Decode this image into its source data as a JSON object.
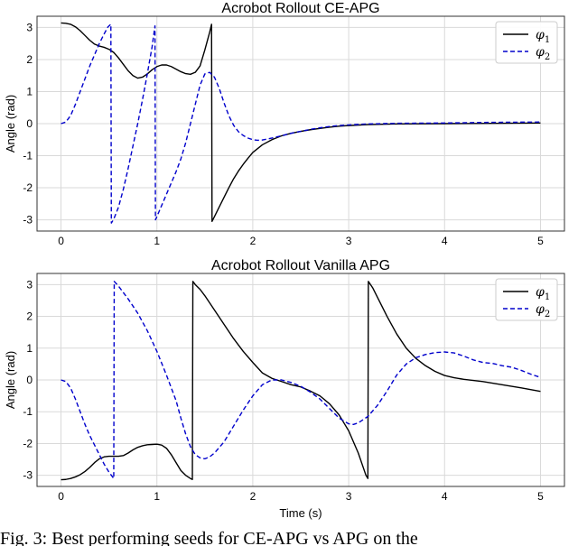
{
  "caption": "Fig. 3: Best performing seeds for CE-APG vs APG on the",
  "colors": {
    "phi1": "#000000",
    "phi2": "#0000cc"
  },
  "chart_data": [
    {
      "type": "line",
      "title": "Acrobot Rollout CE-APG",
      "xlabel": "",
      "ylabel": "Angle (rad)",
      "xlim": [
        -0.25,
        5.25
      ],
      "ylim": [
        -3.35,
        3.35
      ],
      "xticks": [
        0,
        1,
        2,
        3,
        4,
        5
      ],
      "yticks": [
        -3,
        -2,
        -1,
        0,
        1,
        2,
        3
      ],
      "grid": true,
      "legend": "top-right",
      "series": [
        {
          "name": "φ1",
          "label_main": "φ",
          "label_sub": "1",
          "style": "solid",
          "color": "#000000",
          "points": [
            [
              0,
              3.14
            ],
            [
              0.05,
              3.13
            ],
            [
              0.1,
              3.1
            ],
            [
              0.15,
              3.02
            ],
            [
              0.2,
              2.9
            ],
            [
              0.25,
              2.75
            ],
            [
              0.3,
              2.6
            ],
            [
              0.35,
              2.48
            ],
            [
              0.4,
              2.42
            ],
            [
              0.45,
              2.38
            ],
            [
              0.5,
              2.32
            ],
            [
              0.55,
              2.22
            ],
            [
              0.6,
              2.05
            ],
            [
              0.65,
              1.85
            ],
            [
              0.7,
              1.65
            ],
            [
              0.75,
              1.5
            ],
            [
              0.8,
              1.42
            ],
            [
              0.85,
              1.45
            ],
            [
              0.9,
              1.55
            ],
            [
              0.95,
              1.68
            ],
            [
              1.0,
              1.78
            ],
            [
              1.05,
              1.83
            ],
            [
              1.1,
              1.83
            ],
            [
              1.15,
              1.78
            ],
            [
              1.2,
              1.7
            ],
            [
              1.25,
              1.62
            ],
            [
              1.3,
              1.56
            ],
            [
              1.35,
              1.54
            ],
            [
              1.4,
              1.6
            ],
            [
              1.45,
              1.8
            ],
            [
              1.5,
              2.3
            ],
            [
              1.55,
              2.85
            ],
            [
              1.57,
              3.1
            ],
            [
              1.575,
              -3.05
            ],
            [
              1.6,
              -2.9
            ],
            [
              1.65,
              -2.6
            ],
            [
              1.7,
              -2.3
            ],
            [
              1.75,
              -2.0
            ],
            [
              1.8,
              -1.72
            ],
            [
              1.85,
              -1.48
            ],
            [
              1.9,
              -1.27
            ],
            [
              1.95,
              -1.08
            ],
            [
              2.0,
              -0.9
            ],
            [
              2.1,
              -0.66
            ],
            [
              2.2,
              -0.5
            ],
            [
              2.3,
              -0.38
            ],
            [
              2.4,
              -0.3
            ],
            [
              2.5,
              -0.24
            ],
            [
              2.6,
              -0.19
            ],
            [
              2.7,
              -0.15
            ],
            [
              2.8,
              -0.11
            ],
            [
              2.9,
              -0.08
            ],
            [
              3.0,
              -0.06
            ],
            [
              3.2,
              -0.03
            ],
            [
              3.5,
              -0.01
            ],
            [
              4.0,
              0.0
            ],
            [
              4.5,
              0.01
            ],
            [
              5.0,
              0.02
            ]
          ]
        },
        {
          "name": "φ2",
          "label_main": "φ",
          "label_sub": "2",
          "style": "dashed",
          "color": "#0000cc",
          "points": [
            [
              0,
              0.0
            ],
            [
              0.05,
              0.05
            ],
            [
              0.1,
              0.25
            ],
            [
              0.15,
              0.6
            ],
            [
              0.2,
              1.0
            ],
            [
              0.25,
              1.4
            ],
            [
              0.3,
              1.8
            ],
            [
              0.35,
              2.15
            ],
            [
              0.4,
              2.5
            ],
            [
              0.45,
              2.8
            ],
            [
              0.49,
              3.02
            ],
            [
              0.52,
              3.1
            ],
            [
              0.525,
              -3.1
            ],
            [
              0.55,
              -2.98
            ],
            [
              0.6,
              -2.6
            ],
            [
              0.65,
              -2.05
            ],
            [
              0.7,
              -1.4
            ],
            [
              0.75,
              -0.7
            ],
            [
              0.8,
              0.0
            ],
            [
              0.85,
              0.75
            ],
            [
              0.9,
              1.55
            ],
            [
              0.95,
              2.4
            ],
            [
              0.98,
              3.05
            ],
            [
              0.985,
              -3.0
            ],
            [
              1.0,
              -2.9
            ],
            [
              1.05,
              -2.55
            ],
            [
              1.1,
              -2.2
            ],
            [
              1.15,
              -1.85
            ],
            [
              1.2,
              -1.5
            ],
            [
              1.25,
              -1.1
            ],
            [
              1.3,
              -0.6
            ],
            [
              1.35,
              0.0
            ],
            [
              1.4,
              0.6
            ],
            [
              1.45,
              1.2
            ],
            [
              1.5,
              1.55
            ],
            [
              1.55,
              1.6
            ],
            [
              1.6,
              1.45
            ],
            [
              1.65,
              1.1
            ],
            [
              1.7,
              0.65
            ],
            [
              1.75,
              0.25
            ],
            [
              1.8,
              -0.05
            ],
            [
              1.85,
              -0.25
            ],
            [
              1.9,
              -0.37
            ],
            [
              1.95,
              -0.45
            ],
            [
              2.0,
              -0.5
            ],
            [
              2.05,
              -0.52
            ],
            [
              2.1,
              -0.51
            ],
            [
              2.2,
              -0.45
            ],
            [
              2.3,
              -0.38
            ],
            [
              2.4,
              -0.3
            ],
            [
              2.5,
              -0.24
            ],
            [
              2.6,
              -0.18
            ],
            [
              2.7,
              -0.13
            ],
            [
              2.8,
              -0.09
            ],
            [
              2.9,
              -0.06
            ],
            [
              3.0,
              -0.04
            ],
            [
              3.2,
              -0.01
            ],
            [
              3.5,
              0.01
            ],
            [
              4.0,
              0.02
            ],
            [
              4.5,
              0.04
            ],
            [
              5.0,
              0.05
            ]
          ]
        }
      ]
    },
    {
      "type": "line",
      "title": "Acrobot Rollout Vanilla APG",
      "xlabel": "Time (s)",
      "ylabel": "Angle (rad)",
      "xlim": [
        -0.25,
        5.25
      ],
      "ylim": [
        -3.35,
        3.35
      ],
      "xticks": [
        0,
        1,
        2,
        3,
        4,
        5
      ],
      "yticks": [
        -3,
        -2,
        -1,
        0,
        1,
        2,
        3
      ],
      "grid": true,
      "legend": "top-right",
      "series": [
        {
          "name": "φ1",
          "label_main": "φ",
          "label_sub": "1",
          "style": "solid",
          "color": "#000000",
          "points": [
            [
              0,
              -3.14
            ],
            [
              0.05,
              -3.13
            ],
            [
              0.1,
              -3.1
            ],
            [
              0.15,
              -3.05
            ],
            [
              0.2,
              -2.98
            ],
            [
              0.25,
              -2.88
            ],
            [
              0.3,
              -2.75
            ],
            [
              0.35,
              -2.6
            ],
            [
              0.4,
              -2.48
            ],
            [
              0.45,
              -2.42
            ],
            [
              0.5,
              -2.4
            ],
            [
              0.55,
              -2.4
            ],
            [
              0.6,
              -2.4
            ],
            [
              0.65,
              -2.38
            ],
            [
              0.7,
              -2.3
            ],
            [
              0.75,
              -2.2
            ],
            [
              0.8,
              -2.12
            ],
            [
              0.85,
              -2.07
            ],
            [
              0.9,
              -2.04
            ],
            [
              0.95,
              -2.03
            ],
            [
              1.0,
              -2.02
            ],
            [
              1.05,
              -2.05
            ],
            [
              1.1,
              -2.15
            ],
            [
              1.15,
              -2.35
            ],
            [
              1.2,
              -2.6
            ],
            [
              1.25,
              -2.85
            ],
            [
              1.3,
              -3.0
            ],
            [
              1.35,
              -3.1
            ],
            [
              1.37,
              -3.13
            ],
            [
              1.375,
              3.1
            ],
            [
              1.4,
              3.0
            ],
            [
              1.45,
              2.85
            ],
            [
              1.5,
              2.65
            ],
            [
              1.6,
              2.2
            ],
            [
              1.7,
              1.75
            ],
            [
              1.8,
              1.3
            ],
            [
              1.9,
              0.9
            ],
            [
              2.0,
              0.55
            ],
            [
              2.1,
              0.22
            ],
            [
              2.2,
              0.05
            ],
            [
              2.3,
              -0.05
            ],
            [
              2.4,
              -0.15
            ],
            [
              2.5,
              -0.22
            ],
            [
              2.6,
              -0.35
            ],
            [
              2.7,
              -0.5
            ],
            [
              2.8,
              -0.75
            ],
            [
              2.9,
              -1.1
            ],
            [
              3.0,
              -1.6
            ],
            [
              3.1,
              -2.3
            ],
            [
              3.18,
              -3.0
            ],
            [
              3.2,
              -3.1
            ],
            [
              3.205,
              3.1
            ],
            [
              3.25,
              2.9
            ],
            [
              3.3,
              2.6
            ],
            [
              3.4,
              2.0
            ],
            [
              3.5,
              1.45
            ],
            [
              3.6,
              1.0
            ],
            [
              3.7,
              0.68
            ],
            [
              3.8,
              0.45
            ],
            [
              3.9,
              0.27
            ],
            [
              4.0,
              0.14
            ],
            [
              4.1,
              0.07
            ],
            [
              4.2,
              0.02
            ],
            [
              4.4,
              -0.05
            ],
            [
              4.6,
              -0.15
            ],
            [
              4.8,
              -0.25
            ],
            [
              5.0,
              -0.36
            ]
          ]
        },
        {
          "name": "φ2",
          "label_main": "φ",
          "label_sub": "2",
          "style": "dashed",
          "color": "#0000cc",
          "points": [
            [
              0,
              0.0
            ],
            [
              0.05,
              -0.05
            ],
            [
              0.1,
              -0.25
            ],
            [
              0.15,
              -0.6
            ],
            [
              0.2,
              -1.0
            ],
            [
              0.25,
              -1.4
            ],
            [
              0.3,
              -1.75
            ],
            [
              0.35,
              -2.05
            ],
            [
              0.4,
              -2.35
            ],
            [
              0.45,
              -2.65
            ],
            [
              0.5,
              -2.9
            ],
            [
              0.55,
              -3.1
            ],
            [
              0.555,
              3.1
            ],
            [
              0.6,
              2.95
            ],
            [
              0.7,
              2.55
            ],
            [
              0.8,
              2.1
            ],
            [
              0.9,
              1.55
            ],
            [
              1.0,
              0.9
            ],
            [
              1.1,
              0.15
            ],
            [
              1.2,
              -0.65
            ],
            [
              1.25,
              -1.2
            ],
            [
              1.3,
              -1.7
            ],
            [
              1.35,
              -2.1
            ],
            [
              1.4,
              -2.35
            ],
            [
              1.45,
              -2.45
            ],
            [
              1.5,
              -2.48
            ],
            [
              1.55,
              -2.42
            ],
            [
              1.6,
              -2.3
            ],
            [
              1.7,
              -1.95
            ],
            [
              1.8,
              -1.45
            ],
            [
              1.9,
              -0.95
            ],
            [
              2.0,
              -0.5
            ],
            [
              2.1,
              -0.15
            ],
            [
              2.2,
              0.0
            ],
            [
              2.3,
              0.0
            ],
            [
              2.4,
              -0.08
            ],
            [
              2.5,
              -0.2
            ],
            [
              2.6,
              -0.38
            ],
            [
              2.7,
              -0.6
            ],
            [
              2.8,
              -0.9
            ],
            [
              2.9,
              -1.2
            ],
            [
              3.0,
              -1.38
            ],
            [
              3.05,
              -1.4
            ],
            [
              3.1,
              -1.35
            ],
            [
              3.2,
              -1.15
            ],
            [
              3.3,
              -0.8
            ],
            [
              3.4,
              -0.35
            ],
            [
              3.5,
              0.15
            ],
            [
              3.6,
              0.5
            ],
            [
              3.7,
              0.7
            ],
            [
              3.8,
              0.8
            ],
            [
              3.9,
              0.86
            ],
            [
              4.0,
              0.88
            ],
            [
              4.1,
              0.85
            ],
            [
              4.2,
              0.75
            ],
            [
              4.3,
              0.63
            ],
            [
              4.4,
              0.55
            ],
            [
              4.5,
              0.52
            ],
            [
              4.6,
              0.45
            ],
            [
              4.7,
              0.4
            ],
            [
              4.8,
              0.3
            ],
            [
              4.9,
              0.18
            ],
            [
              5.0,
              0.08
            ]
          ]
        }
      ]
    }
  ]
}
